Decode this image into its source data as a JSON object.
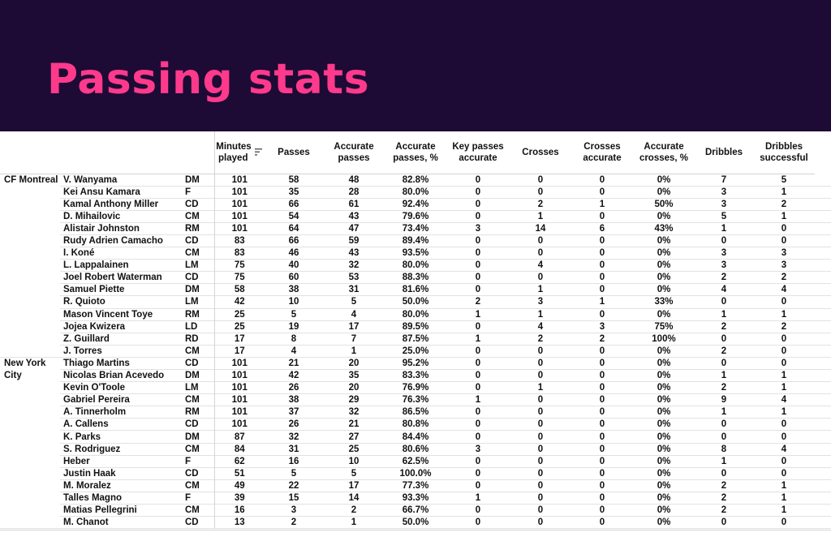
{
  "title": "Passing stats",
  "columns": {
    "minutes": "Minutes played",
    "passes": "Passes",
    "accurate_passes": "Accurate passes",
    "accurate_passes_pct": "Accurate passes, %",
    "key_passes": "Key passes accurate",
    "crosses": "Crosses",
    "crosses_accurate": "Crosses accurate",
    "crosses_pct": "Accurate crosses, %",
    "dribbles": "Dribbles",
    "dribbles_successful": "Dribbles successful"
  },
  "sort_icon": "sort-descending-icon",
  "colors": {
    "header_bg": "#1d0a35",
    "title": "#ff3a8c"
  },
  "teams": [
    {
      "name": "CF Montreal",
      "players": [
        [
          "V. Wanyama",
          "DM",
          "101",
          "58",
          "48",
          "82.8%",
          "0",
          "0",
          "0",
          "0%",
          "7",
          "5"
        ],
        [
          "Kei Ansu Kamara",
          "F",
          "101",
          "35",
          "28",
          "80.0%",
          "0",
          "0",
          "0",
          "0%",
          "3",
          "1"
        ],
        [
          "Kamal Anthony Miller",
          "CD",
          "101",
          "66",
          "61",
          "92.4%",
          "0",
          "2",
          "1",
          "50%",
          "3",
          "2"
        ],
        [
          "D. Mihailovic",
          "CM",
          "101",
          "54",
          "43",
          "79.6%",
          "0",
          "1",
          "0",
          "0%",
          "5",
          "1"
        ],
        [
          "Alistair Johnston",
          "RM",
          "101",
          "64",
          "47",
          "73.4%",
          "3",
          "14",
          "6",
          "43%",
          "1",
          "0"
        ],
        [
          "Rudy Adrien Camacho",
          "CD",
          "83",
          "66",
          "59",
          "89.4%",
          "0",
          "0",
          "0",
          "0%",
          "0",
          "0"
        ],
        [
          "I. Koné",
          "CM",
          "83",
          "46",
          "43",
          "93.5%",
          "0",
          "0",
          "0",
          "0%",
          "3",
          "3"
        ],
        [
          "L. Lappalainen",
          "LM",
          "75",
          "40",
          "32",
          "80.0%",
          "0",
          "4",
          "0",
          "0%",
          "3",
          "3"
        ],
        [
          "Joel Robert Waterman",
          "CD",
          "75",
          "60",
          "53",
          "88.3%",
          "0",
          "0",
          "0",
          "0%",
          "2",
          "2"
        ],
        [
          "Samuel Piette",
          "DM",
          "58",
          "38",
          "31",
          "81.6%",
          "0",
          "1",
          "0",
          "0%",
          "4",
          "4"
        ],
        [
          "R. Quioto",
          "LM",
          "42",
          "10",
          "5",
          "50.0%",
          "2",
          "3",
          "1",
          "33%",
          "0",
          "0"
        ],
        [
          "Mason Vincent Toye",
          "RM",
          "25",
          "5",
          "4",
          "80.0%",
          "1",
          "1",
          "0",
          "0%",
          "1",
          "1"
        ],
        [
          "Jojea Kwizera",
          "LD",
          "25",
          "19",
          "17",
          "89.5%",
          "0",
          "4",
          "3",
          "75%",
          "2",
          "2"
        ],
        [
          "Z. Guillard",
          "RD",
          "17",
          "8",
          "7",
          "87.5%",
          "1",
          "2",
          "2",
          "100%",
          "0",
          "0"
        ],
        [
          "J. Torres",
          "CM",
          "17",
          "4",
          "1",
          "25.0%",
          "0",
          "0",
          "0",
          "0%",
          "2",
          "0"
        ]
      ]
    },
    {
      "name": "New York City",
      "players": [
        [
          "Thiago Martins",
          "CD",
          "101",
          "21",
          "20",
          "95.2%",
          "0",
          "0",
          "0",
          "0%",
          "0",
          "0"
        ],
        [
          "Nicolas Brian Acevedo",
          "DM",
          "101",
          "42",
          "35",
          "83.3%",
          "0",
          "0",
          "0",
          "0%",
          "1",
          "1"
        ],
        [
          "Kevin O'Toole",
          "LM",
          "101",
          "26",
          "20",
          "76.9%",
          "0",
          "1",
          "0",
          "0%",
          "2",
          "1"
        ],
        [
          "Gabriel Pereira",
          "CM",
          "101",
          "38",
          "29",
          "76.3%",
          "1",
          "0",
          "0",
          "0%",
          "9",
          "4"
        ],
        [
          "A. Tinnerholm",
          "RM",
          "101",
          "37",
          "32",
          "86.5%",
          "0",
          "0",
          "0",
          "0%",
          "1",
          "1"
        ],
        [
          "A. Callens",
          "CD",
          "101",
          "26",
          "21",
          "80.8%",
          "0",
          "0",
          "0",
          "0%",
          "0",
          "0"
        ],
        [
          "K. Parks",
          "DM",
          "87",
          "32",
          "27",
          "84.4%",
          "0",
          "0",
          "0",
          "0%",
          "0",
          "0"
        ],
        [
          "S. Rodriguez",
          "CM",
          "84",
          "31",
          "25",
          "80.6%",
          "3",
          "0",
          "0",
          "0%",
          "8",
          "4"
        ],
        [
          "Heber",
          "F",
          "62",
          "16",
          "10",
          "62.5%",
          "0",
          "0",
          "0",
          "0%",
          "1",
          "0"
        ],
        [
          "Justin Haak",
          "CD",
          "51",
          "5",
          "5",
          "100.0%",
          "0",
          "0",
          "0",
          "0%",
          "0",
          "0"
        ],
        [
          "M. Moralez",
          "CM",
          "49",
          "22",
          "17",
          "77.3%",
          "0",
          "0",
          "0",
          "0%",
          "2",
          "1"
        ],
        [
          "Talles Magno",
          "F",
          "39",
          "15",
          "14",
          "93.3%",
          "1",
          "0",
          "0",
          "0%",
          "2",
          "1"
        ],
        [
          "Matias Pellegrini",
          "CM",
          "16",
          "3",
          "2",
          "66.7%",
          "0",
          "0",
          "0",
          "0%",
          "2",
          "1"
        ],
        [
          "M. Chanot",
          "CD",
          "13",
          "2",
          "1",
          "50.0%",
          "0",
          "0",
          "0",
          "0%",
          "0",
          "0"
        ]
      ]
    }
  ]
}
